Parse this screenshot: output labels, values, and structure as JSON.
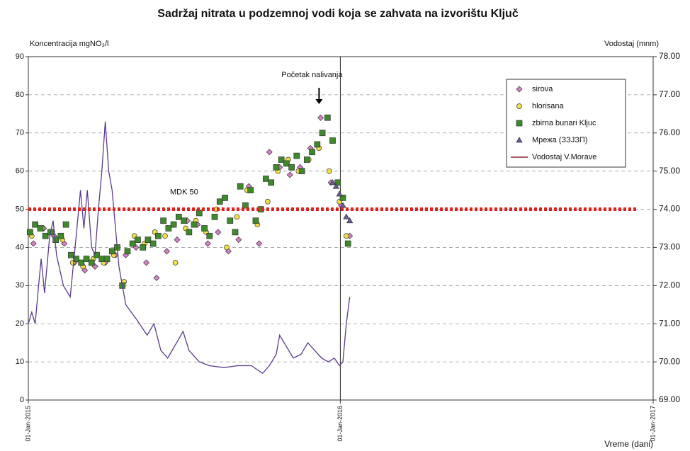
{
  "chart_data": {
    "type": "scatter",
    "title": "Sadržaj nitrata u podzemnoj vodi koja se zahvata na izvorištu Ključ",
    "ylabel": "Koncentracija mgNO₃/l",
    "y2label": "Vodostaj (mnm)",
    "xlabel": "Vreme (dani)",
    "xlim": [
      0,
      731
    ],
    "xticks": [
      {
        "value": 0,
        "label": "01-Jan-2015"
      },
      {
        "value": 365,
        "label": "01-Jan-2016"
      },
      {
        "value": 731,
        "label": "01-Jan-2017"
      }
    ],
    "ylim": [
      0,
      90
    ],
    "yticks": [
      0,
      10,
      20,
      30,
      40,
      50,
      60,
      70,
      80,
      90
    ],
    "y2lim": [
      69,
      78
    ],
    "y2ticks": [
      {
        "value": 69,
        "label": "69.00"
      },
      {
        "value": 70,
        "label": "70.00"
      },
      {
        "value": 71,
        "label": "71.00"
      },
      {
        "value": 72,
        "label": "72.00"
      },
      {
        "value": 73,
        "label": "73.00"
      },
      {
        "value": 74,
        "label": "74.00"
      },
      {
        "value": 75,
        "label": "75.00"
      },
      {
        "value": 76,
        "label": "76.00"
      },
      {
        "value": 77,
        "label": "77.00"
      },
      {
        "value": 78,
        "label": "78.00"
      }
    ],
    "grid": true,
    "legend": "upper right",
    "reference_line": {
      "value": 50,
      "label": "MDK 50",
      "color": "#e0201a"
    },
    "event": {
      "x": 365,
      "label": "Početak nalivanja"
    },
    "series": [
      {
        "name": "sirova",
        "marker": "diamond",
        "color": "#d77fc7",
        "x": [
          6,
          18,
          30,
          42,
          54,
          66,
          78,
          90,
          102,
          114,
          126,
          138,
          150,
          162,
          174,
          186,
          198,
          210,
          222,
          234,
          246,
          258,
          270,
          282,
          294,
          306,
          318,
          330,
          342,
          354,
          366,
          376
        ],
        "values": [
          41,
          45,
          43,
          41,
          36,
          34,
          35,
          36,
          38,
          38,
          40,
          36,
          32,
          39,
          42,
          47,
          46,
          41,
          44,
          39,
          42,
          56,
          41,
          65,
          61,
          59,
          61,
          66,
          74,
          57,
          51,
          43
        ]
      },
      {
        "name": "hlorisana",
        "marker": "circle",
        "color": "#f2df45",
        "x": [
          4,
          16,
          28,
          40,
          52,
          64,
          76,
          88,
          100,
          112,
          124,
          136,
          148,
          160,
          172,
          184,
          196,
          208,
          220,
          232,
          244,
          256,
          268,
          280,
          292,
          304,
          316,
          328,
          340,
          352,
          364,
          372
        ],
        "values": [
          43,
          45,
          44,
          42,
          36,
          35,
          37,
          36,
          38,
          31,
          43,
          41,
          44,
          43,
          36,
          45,
          47,
          44,
          50,
          40,
          48,
          55,
          46,
          52,
          60,
          63,
          60,
          63,
          66,
          60,
          52,
          43
        ]
      },
      {
        "name": "zbirna bunari Kljuc",
        "marker": "square",
        "color": "#3e8a2a",
        "x": [
          2,
          8,
          14,
          20,
          26,
          32,
          38,
          44,
          50,
          56,
          62,
          68,
          74,
          80,
          86,
          92,
          98,
          104,
          110,
          116,
          122,
          128,
          134,
          140,
          146,
          152,
          158,
          164,
          170,
          176,
          182,
          188,
          194,
          200,
          206,
          212,
          218,
          224,
          230,
          236,
          242,
          248,
          254,
          260,
          266,
          272,
          278,
          284,
          290,
          296,
          302,
          308,
          314,
          320,
          326,
          332,
          338,
          344,
          350,
          356,
          362,
          368,
          374
        ],
        "values": [
          44,
          46,
          45,
          43,
          44,
          42,
          43,
          46,
          38,
          37,
          36,
          37,
          36,
          38,
          37,
          37,
          39,
          40,
          30,
          39,
          41,
          42,
          40,
          42,
          41,
          43,
          47,
          45,
          46,
          48,
          47,
          44,
          46,
          49,
          45,
          43,
          48,
          52,
          53,
          47,
          44,
          56,
          51,
          55,
          47,
          50,
          58,
          57,
          61,
          63,
          62,
          61,
          64,
          60,
          63,
          65,
          67,
          70,
          74,
          68,
          57,
          53,
          41
        ]
      },
      {
        "name": "Мрежа (ЗЗЈЗП)",
        "marker": "triangle",
        "color": "#6a5a9a",
        "x": [
          356,
          360,
          364,
          368,
          372,
          376
        ],
        "values": [
          57,
          56,
          54,
          51,
          48,
          47
        ]
      },
      {
        "name": "Vodostaj V.Morave",
        "marker": "line",
        "color": "#5b3a8c",
        "legend_color": "#8b2030",
        "axis": "y2",
        "x": [
          0,
          4,
          8,
          12,
          15,
          19,
          25,
          29,
          33,
          41,
          49,
          56,
          61,
          65,
          69,
          74,
          78,
          82,
          86,
          90,
          94,
          98,
          102,
          106,
          114,
          127,
          139,
          147,
          155,
          163,
          176,
          181,
          188,
          200,
          212,
          229,
          245,
          261,
          274,
          282,
          290,
          294,
          302,
          310,
          319,
          327,
          335,
          343,
          351,
          358,
          364,
          368,
          372,
          376
        ],
        "values": [
          71.0,
          71.3,
          71.0,
          72.0,
          72.7,
          71.8,
          73.3,
          73.7,
          72.8,
          72.0,
          71.7,
          73.3,
          74.5,
          73.5,
          74.5,
          73.0,
          72.8,
          74.0,
          75.0,
          76.3,
          75.0,
          74.5,
          73.5,
          72.5,
          71.5,
          71.1,
          70.7,
          71.0,
          70.3,
          70.1,
          70.6,
          70.8,
          70.3,
          70.0,
          69.9,
          69.85,
          69.9,
          69.9,
          69.7,
          69.9,
          70.2,
          70.7,
          70.4,
          70.1,
          70.2,
          70.5,
          70.3,
          70.1,
          70.0,
          70.1,
          69.9,
          70.0,
          71.0,
          71.7
        ]
      }
    ]
  }
}
